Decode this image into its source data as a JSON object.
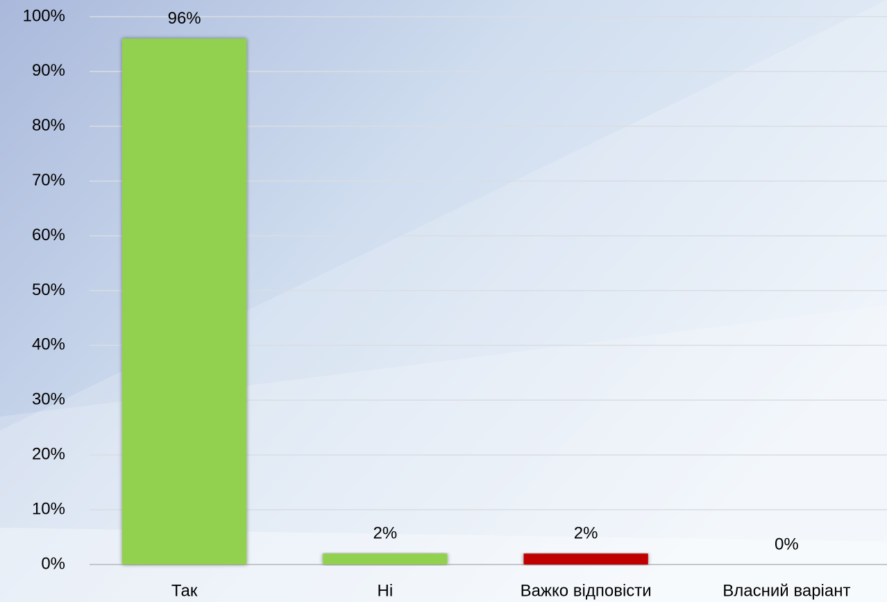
{
  "chart_data": {
    "type": "bar",
    "categories": [
      "Так",
      "Ні",
      "Важко відповісти",
      "Власний варіант"
    ],
    "values": [
      96,
      2,
      2,
      0
    ],
    "value_labels": [
      "96%",
      "2%",
      "2%",
      "0%"
    ],
    "colors": [
      "#92d050",
      "#92d050",
      "#c00000",
      "#92d050"
    ],
    "ylim": [
      0,
      100
    ],
    "yticks": [
      {
        "value": 0,
        "label": "0%"
      },
      {
        "value": 10,
        "label": "10%"
      },
      {
        "value": 20,
        "label": "20%"
      },
      {
        "value": 30,
        "label": "30%"
      },
      {
        "value": 40,
        "label": "40%"
      },
      {
        "value": 50,
        "label": "50%"
      },
      {
        "value": 60,
        "label": "60%"
      },
      {
        "value": 70,
        "label": "70%"
      },
      {
        "value": 80,
        "label": "80%"
      },
      {
        "value": 90,
        "label": "90%"
      },
      {
        "value": 100,
        "label": "100%"
      }
    ],
    "grid": true
  }
}
